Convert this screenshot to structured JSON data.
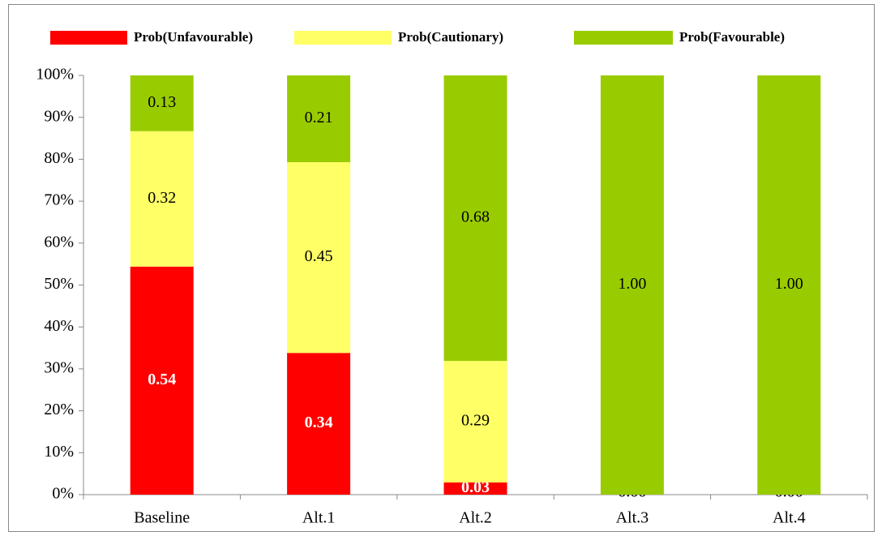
{
  "chart_data": {
    "type": "stacked_bar",
    "categories": [
      "Baseline",
      "Alt.1",
      "Alt.2",
      "Alt.3",
      "Alt.4"
    ],
    "series": [
      {
        "name": "Prob(Unfavourable)",
        "color": "#ff0000",
        "values": [
          54.4,
          33.8,
          2.9,
          0,
          0
        ],
        "value_labels": [
          "0.54",
          "0.34",
          "0.03",
          "0.00",
          "0.00"
        ]
      },
      {
        "name": "Prob(Cautionary)",
        "color": "#ffff66",
        "values": [
          32.3,
          45.5,
          29.0,
          0,
          0
        ],
        "value_labels": [
          "0.32",
          "0.45",
          "0.29",
          null,
          null
        ]
      },
      {
        "name": "Prob(Favourable)",
        "color": "#99cc00",
        "values": [
          13.3,
          20.7,
          68.1,
          100,
          100
        ],
        "value_labels": [
          "0.13",
          "0.21",
          "0.68",
          "1.00",
          "1.00"
        ]
      }
    ],
    "ylim": [
      0,
      100
    ],
    "yticks": [
      {
        "value": 0,
        "label": "0%"
      },
      {
        "value": 10,
        "label": "10%"
      },
      {
        "value": 20,
        "label": "20%"
      },
      {
        "value": 30,
        "label": "30%"
      },
      {
        "value": 40,
        "label": "40%"
      },
      {
        "value": 50,
        "label": "50%"
      },
      {
        "value": 60,
        "label": "60%"
      },
      {
        "value": 70,
        "label": "70%"
      },
      {
        "value": 80,
        "label": "80%"
      },
      {
        "value": 90,
        "label": "90%"
      },
      {
        "value": 100,
        "label": "100%"
      }
    ],
    "legend": "top"
  }
}
